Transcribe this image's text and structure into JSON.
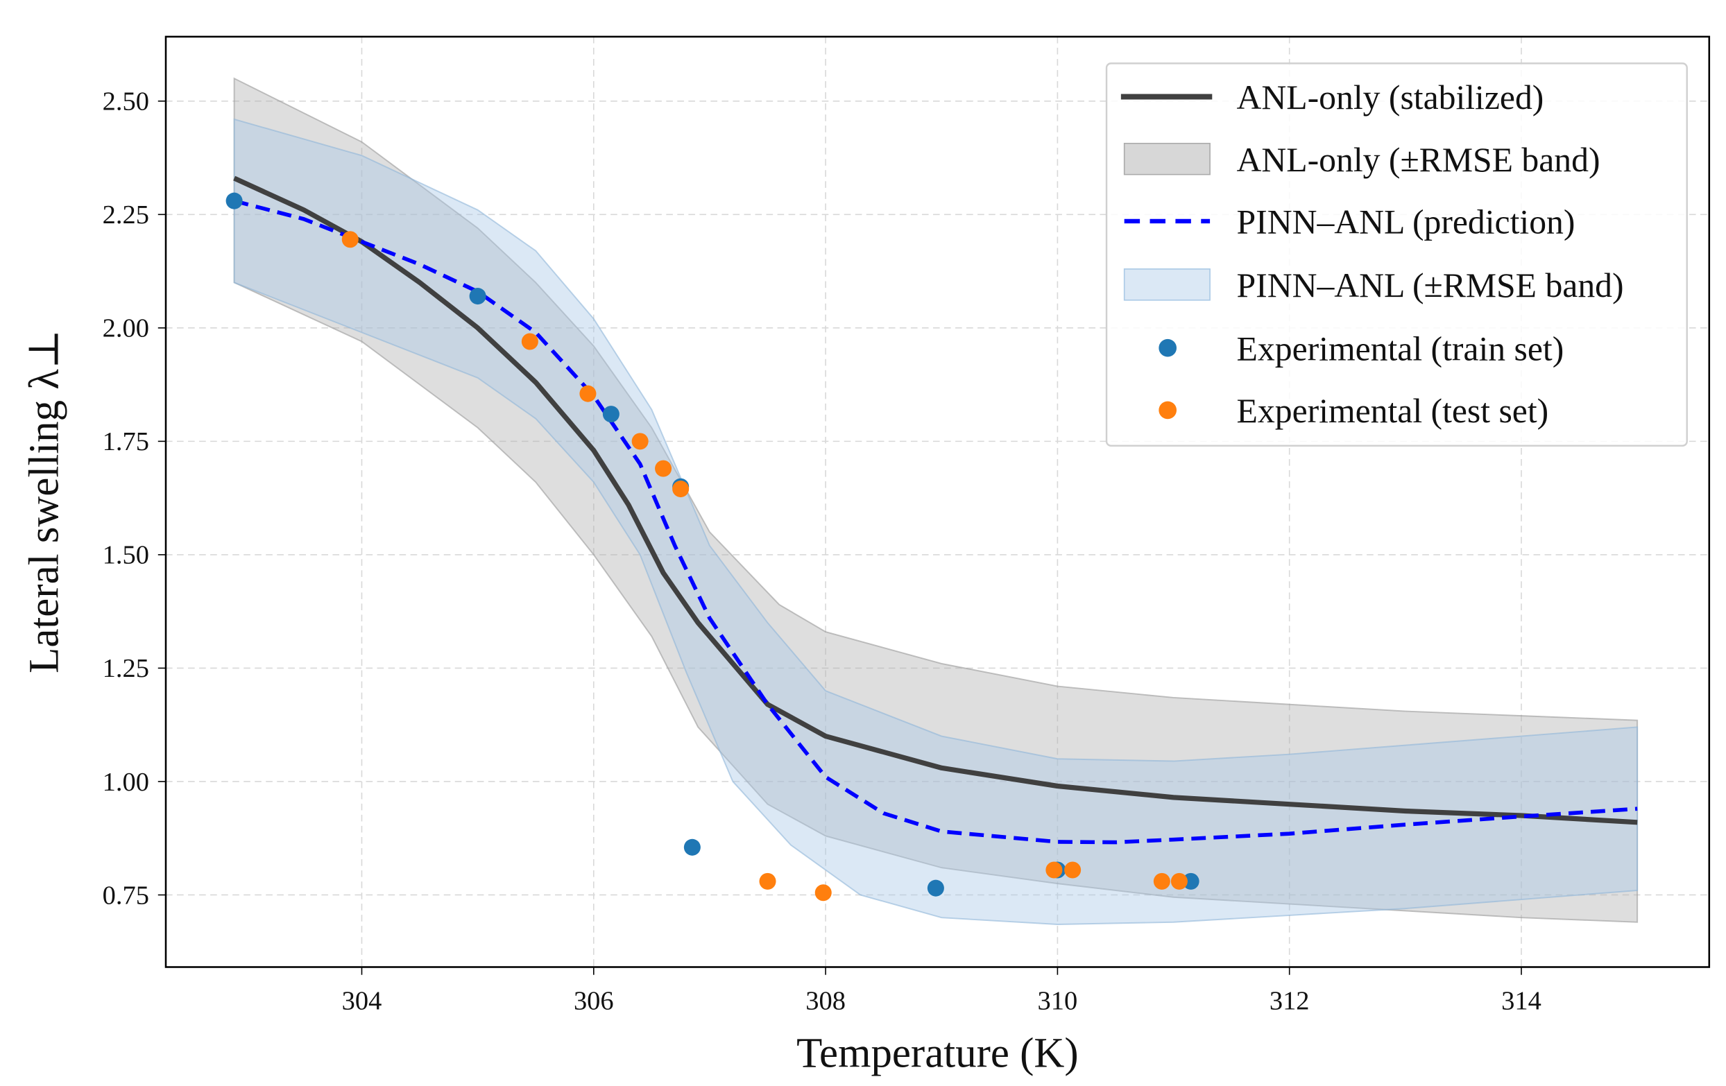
{
  "chart_data": {
    "type": "line",
    "title": "",
    "xlabel": "Temperature (K)",
    "ylabel": "Lateral swelling λ⊥",
    "xlim": [
      302.31,
      315.62
    ],
    "ylim": [
      0.591,
      2.642
    ],
    "xticks": [
      304,
      306,
      308,
      310,
      312,
      314
    ],
    "xtick_labels": [
      "304",
      "306",
      "308",
      "310",
      "312",
      "314"
    ],
    "yticks": [
      0.75,
      1.0,
      1.25,
      1.5,
      1.75,
      2.0,
      2.25,
      2.5
    ],
    "ytick_labels": [
      "0.75",
      "1.00",
      "1.25",
      "1.50",
      "1.75",
      "2.00",
      "2.25",
      "2.50"
    ],
    "grid": true,
    "legend_position": "top-right",
    "colors": {
      "anl_line": "#404040",
      "anl_band": "#b0b0b0",
      "pinn_line": "#0000ff",
      "pinn_band": "#a9c9e6",
      "train": "#1f77b4",
      "test": "#ff7f0e"
    },
    "series": [
      {
        "name": "ANL-only (stabilized)",
        "kind": "line",
        "x": [
          302.9,
          303.5,
          304,
          304.5,
          305,
          305.5,
          306,
          306.3,
          306.6,
          306.9,
          307.5,
          308,
          309,
          310,
          311,
          312,
          313,
          314,
          315
        ],
        "y": [
          2.33,
          2.26,
          2.19,
          2.1,
          2.0,
          1.88,
          1.73,
          1.61,
          1.46,
          1.35,
          1.17,
          1.1,
          1.03,
          0.99,
          0.965,
          0.95,
          0.935,
          0.925,
          0.91
        ]
      },
      {
        "name": "ANL-only (±RMSE band)",
        "kind": "band",
        "x_upper": [
          302.9,
          304,
          305,
          305.5,
          306,
          306.5,
          307,
          307.6,
          308,
          309,
          310,
          311,
          312,
          313,
          314,
          315
        ],
        "upper": [
          2.55,
          2.41,
          2.22,
          2.1,
          1.96,
          1.78,
          1.55,
          1.39,
          1.33,
          1.26,
          1.21,
          1.185,
          1.17,
          1.155,
          1.145,
          1.135
        ],
        "x_lower": [
          302.9,
          304,
          305,
          305.5,
          306,
          306.5,
          306.9,
          307.5,
          308,
          309,
          310,
          311,
          312,
          313,
          314,
          315
        ],
        "lower": [
          2.1,
          1.97,
          1.78,
          1.66,
          1.5,
          1.32,
          1.12,
          0.95,
          0.88,
          0.81,
          0.775,
          0.745,
          0.73,
          0.715,
          0.7,
          0.69
        ]
      },
      {
        "name": "PINN–ANL (prediction)",
        "kind": "dashed-line",
        "x": [
          302.9,
          303.5,
          304,
          304.5,
          305,
          305.5,
          306,
          306.4,
          306.7,
          307,
          307.5,
          308,
          308.5,
          309,
          310,
          310.5,
          311,
          312,
          313,
          314,
          315
        ],
        "y": [
          2.28,
          2.24,
          2.19,
          2.14,
          2.08,
          1.99,
          1.85,
          1.7,
          1.52,
          1.36,
          1.17,
          1.01,
          0.93,
          0.89,
          0.867,
          0.866,
          0.872,
          0.885,
          0.905,
          0.923,
          0.94
        ]
      },
      {
        "name": "PINN–ANL (±RMSE band)",
        "kind": "band",
        "x_upper": [
          302.9,
          304,
          305,
          305.5,
          306,
          306.5,
          307,
          307.5,
          308,
          309,
          310,
          311,
          312,
          313,
          314,
          315
        ],
        "upper": [
          2.46,
          2.38,
          2.26,
          2.17,
          2.02,
          1.82,
          1.52,
          1.35,
          1.2,
          1.1,
          1.05,
          1.045,
          1.06,
          1.08,
          1.1,
          1.12
        ],
        "x_lower": [
          302.9,
          304,
          305,
          305.5,
          306,
          306.4,
          306.8,
          307.2,
          307.7,
          308.3,
          309,
          310,
          311,
          312,
          313,
          314,
          315
        ],
        "lower": [
          2.1,
          1.99,
          1.89,
          1.8,
          1.66,
          1.5,
          1.24,
          1.0,
          0.86,
          0.75,
          0.7,
          0.685,
          0.69,
          0.705,
          0.72,
          0.74,
          0.76
        ]
      },
      {
        "name": "Experimental (train set)",
        "kind": "scatter",
        "x": [
          302.9,
          305.0,
          306.15,
          306.75,
          306.85,
          308.95,
          310.0,
          311.15
        ],
        "y": [
          2.28,
          2.07,
          1.81,
          1.65,
          0.855,
          0.765,
          0.805,
          0.78
        ]
      },
      {
        "name": "Experimental (test set)",
        "kind": "scatter",
        "x": [
          303.9,
          305.45,
          305.95,
          306.4,
          306.6,
          306.75,
          307.5,
          307.98,
          309.97,
          310.13,
          310.9,
          311.05
        ],
        "y": [
          2.195,
          1.97,
          1.855,
          1.75,
          1.69,
          1.645,
          0.78,
          0.755,
          0.805,
          0.805,
          0.78,
          0.78
        ]
      }
    ]
  }
}
